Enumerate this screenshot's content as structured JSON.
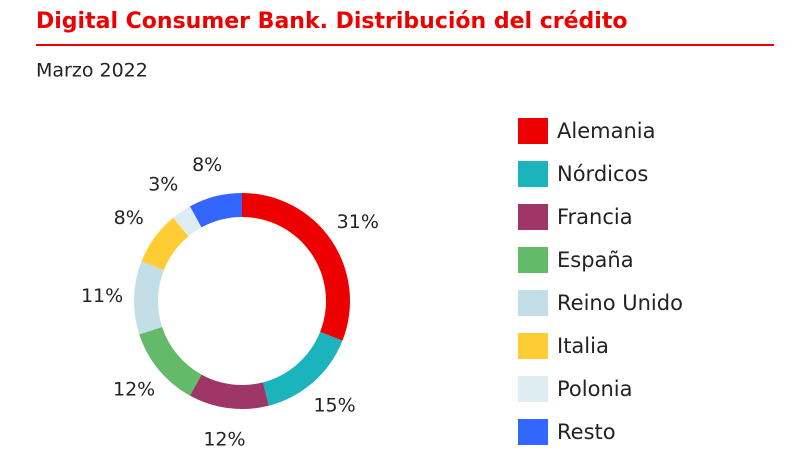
{
  "chart_data": {
    "type": "donut",
    "title": "Digital Consumer Bank. Distribución del crédito",
    "subtitle": "Marzo 2022",
    "categories": [
      "Alemania",
      "Nórdicos",
      "Francia",
      "España",
      "Reino Unido",
      "Italia",
      "Polonia",
      "Resto"
    ],
    "values": [
      31,
      15,
      12,
      12,
      11,
      8,
      3,
      8
    ],
    "value_labels": [
      "31%",
      "15%",
      "12%",
      "12%",
      "11%",
      "8%",
      "3%",
      "8%"
    ],
    "colors": [
      "#ec0000",
      "#1bb3bc",
      "#9e3667",
      "#63ba68",
      "#c3dee7",
      "#ffcc33",
      "#deedf2",
      "#3366ff"
    ]
  }
}
